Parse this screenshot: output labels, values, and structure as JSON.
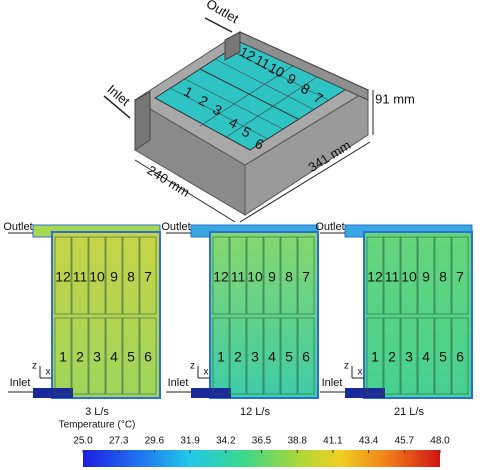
{
  "diagram": {
    "outlet": "Outlet",
    "inlet": "Inlet",
    "width": "240 mm",
    "length": "341 mm",
    "height": "91 mm",
    "cells": [
      "1",
      "2",
      "3",
      "4",
      "5",
      "6",
      "7",
      "8",
      "9",
      "10",
      "11",
      "12"
    ]
  },
  "panels": [
    {
      "outlet": "Outlet",
      "inlet": "Inlet",
      "z": "z",
      "x": "x",
      "cells": [
        "1",
        "2",
        "3",
        "4",
        "5",
        "6",
        "7",
        "8",
        "9",
        "10",
        "11",
        "12"
      ],
      "caption": "3 L/s",
      "subcaption": "Temperature (°C)"
    },
    {
      "outlet": "Outlet",
      "inlet": "Inlet",
      "z": "z",
      "x": "x",
      "cells": [
        "1",
        "2",
        "3",
        "4",
        "5",
        "6",
        "7",
        "8",
        "9",
        "10",
        "11",
        "12"
      ],
      "caption": "12 L/s"
    },
    {
      "outlet": "Outlet",
      "inlet": "Inlet",
      "z": "z",
      "x": "x",
      "cells": [
        "1",
        "2",
        "3",
        "4",
        "5",
        "6",
        "7",
        "8",
        "9",
        "10",
        "11",
        "12"
      ],
      "caption": "21 L/s"
    }
  ],
  "colorbar": {
    "ticks": [
      "25.0",
      "27.3",
      "29.6",
      "31.9",
      "34.2",
      "36.5",
      "38.8",
      "41.1",
      "43.4",
      "45.7",
      "48.0"
    ]
  }
}
